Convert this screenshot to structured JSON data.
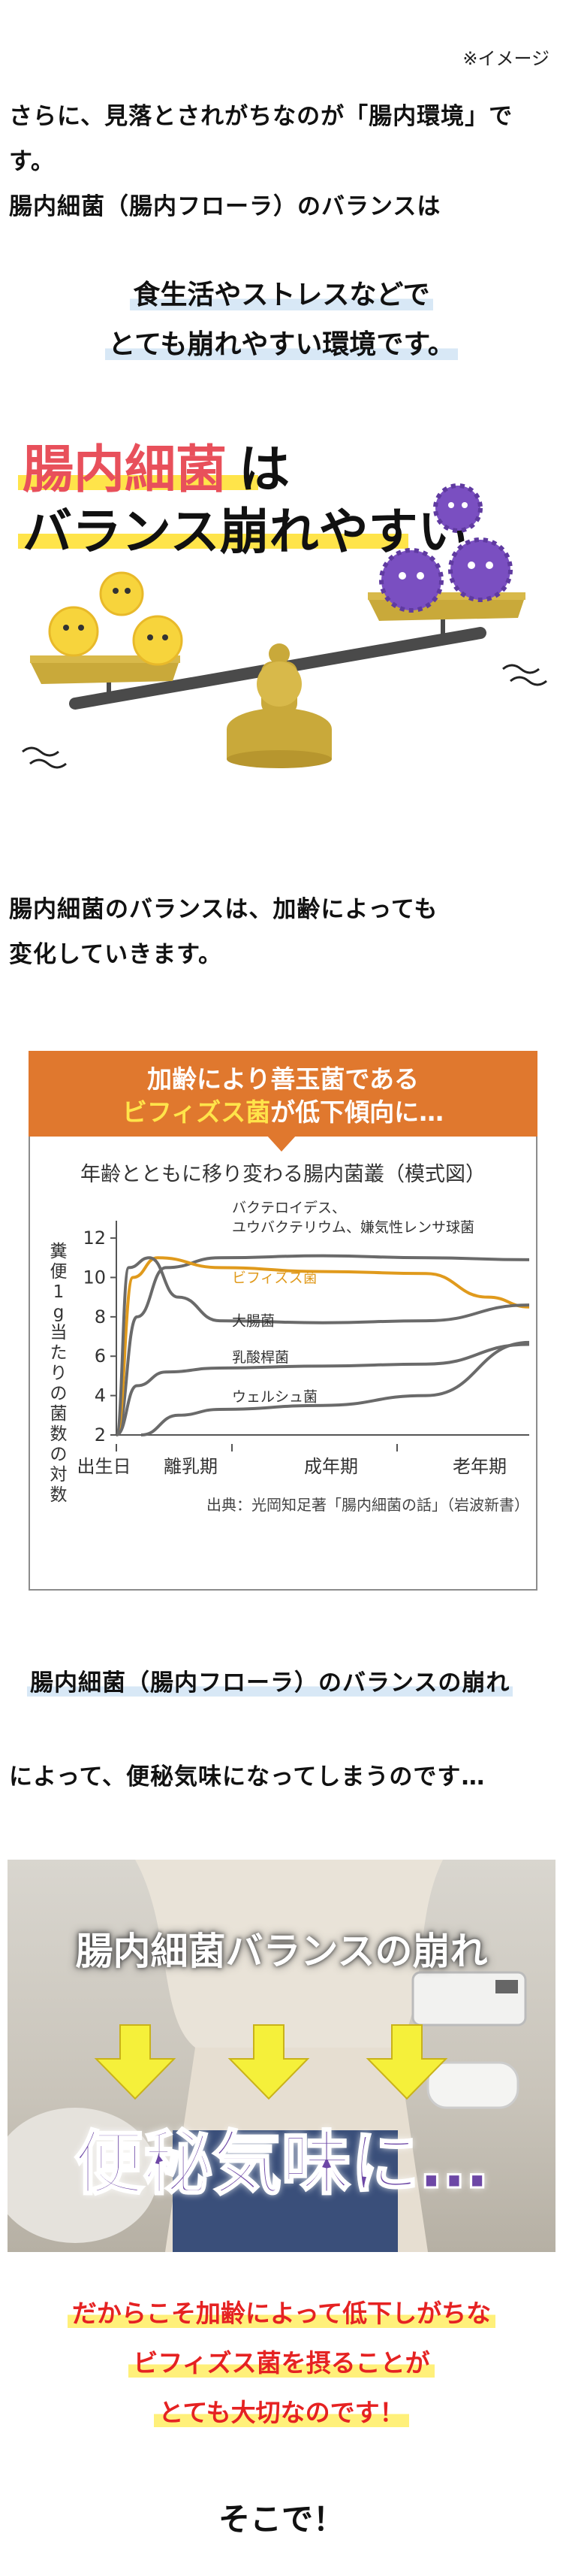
{
  "note": "※イメージ",
  "intro": {
    "line1": "さらに、見落とされがちなのが「腸内環境」で",
    "line2": "す。",
    "line3": "腸内細菌（腸内フローラ）のバランスは"
  },
  "highlight1": {
    "line1": "食生活やストレスなどで",
    "line2": "とても崩れやすい環境です。"
  },
  "illustration": {
    "title_red": "腸内細菌",
    "title_black1": "は",
    "title_black2": "バランス崩れやすい"
  },
  "aging": {
    "line1": "腸内細菌のバランスは、加齢によっても",
    "line2": "変化していきます。"
  },
  "banner": {
    "line1": "加齢により善玉菌である",
    "line2_yellow": "ビフィズス菌",
    "line2_rest": "が低下傾向に…"
  },
  "chart_data": {
    "type": "line",
    "title": "年齢とともに移り変わる腸内菌叢（模式図）",
    "ylabel": "糞便1g当たりの菌数の対数",
    "yticks": [
      2,
      4,
      6,
      8,
      10,
      12
    ],
    "ylim": [
      2,
      12.5
    ],
    "xticks": [
      "出生日",
      "離乳期",
      "成年期",
      "老年期"
    ],
    "source": "出典：光岡知足著「腸内細菌の話」（岩波新書）",
    "series": [
      {
        "name": "バクテロイデス、ユウバクテリウム、嫌気性レンサ球菌",
        "color": "#6a6a6a",
        "x": [
          0,
          0.05,
          0.12,
          0.25,
          0.5,
          0.75,
          1.0
        ],
        "y": [
          2,
          8,
          10.5,
          11.0,
          11.1,
          11.0,
          10.9
        ]
      },
      {
        "name": "ビフィズス菌",
        "color": "#e09a1c",
        "x": [
          0,
          0.04,
          0.1,
          0.25,
          0.5,
          0.75,
          0.9,
          1.0
        ],
        "y": [
          2,
          10,
          11,
          10.5,
          10.3,
          10.2,
          9.0,
          8.5
        ]
      },
      {
        "name": "大腸菌",
        "color": "#6a6a6a",
        "x": [
          0,
          0.03,
          0.08,
          0.15,
          0.25,
          0.5,
          0.75,
          1.0
        ],
        "y": [
          2,
          10.5,
          11,
          9,
          7.8,
          7.7,
          7.8,
          8.6
        ]
      },
      {
        "name": "乳酸桿菌",
        "color": "#6a6a6a",
        "x": [
          0,
          0.05,
          0.12,
          0.25,
          0.5,
          0.75,
          1.0
        ],
        "y": [
          2,
          4.5,
          5.2,
          5.4,
          5.5,
          5.6,
          6.6
        ]
      },
      {
        "name": "ウェルシュ菌",
        "color": "#6a6a6a",
        "x": [
          0.06,
          0.15,
          0.25,
          0.5,
          0.75,
          1.0
        ],
        "y": [
          2,
          3.0,
          3.3,
          3.5,
          4.0,
          6.7
        ]
      }
    ]
  },
  "imbalance": {
    "line1": "腸内細菌（腸内フローラ）のバランスの崩れ",
    "line2": "によって、便秘気味になってしまうのです…"
  },
  "photo": {
    "title": "腸内細菌バランスの崩れ",
    "result": "便秘気味に…"
  },
  "conclusion": {
    "line1": "だからこそ加齢によって低下しがちな",
    "line2": "ビフィズス菌を摂ることが",
    "line3": "とても大切なのです！"
  },
  "final": "そこで！"
}
